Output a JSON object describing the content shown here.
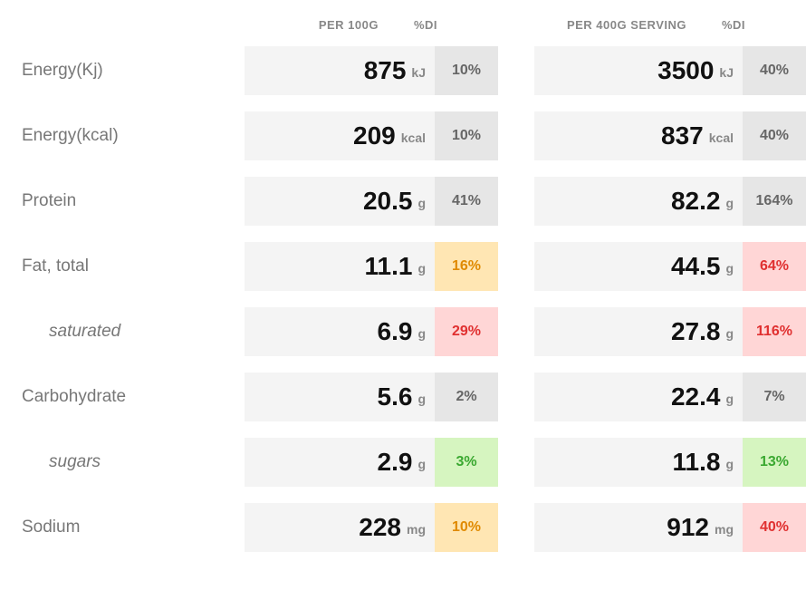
{
  "headers": {
    "per100": "PER 100G",
    "di1": "%DI",
    "perServing": "PER 400G SERVING",
    "di2": "%DI"
  },
  "colors": {
    "neutral_bg": "#e6e6e6",
    "neutral_fg": "#666666",
    "amber_bg": "#ffe6b3",
    "amber_fg": "#e08a00",
    "red_bg": "#ffd6d6",
    "red_fg": "#e03030",
    "green_bg": "#d6f5c0",
    "green_fg": "#3aa830",
    "pill_bg": "#f4f4f4"
  },
  "rows": [
    {
      "label": "Energy(Kj)",
      "indent": false,
      "v100": "875",
      "u100": "kJ",
      "di100": "10%",
      "c100": "neutral",
      "vS": "3500",
      "uS": "kJ",
      "diS": "40%",
      "cS": "neutral"
    },
    {
      "label": "Energy(kcal)",
      "indent": false,
      "v100": "209",
      "u100": "kcal",
      "di100": "10%",
      "c100": "neutral",
      "vS": "837",
      "uS": "kcal",
      "diS": "40%",
      "cS": "neutral"
    },
    {
      "label": "Protein",
      "indent": false,
      "v100": "20.5",
      "u100": "g",
      "di100": "41%",
      "c100": "neutral",
      "vS": "82.2",
      "uS": "g",
      "diS": "164%",
      "cS": "neutral"
    },
    {
      "label": "Fat, total",
      "indent": false,
      "v100": "11.1",
      "u100": "g",
      "di100": "16%",
      "c100": "amber",
      "vS": "44.5",
      "uS": "g",
      "diS": "64%",
      "cS": "red"
    },
    {
      "label": "saturated",
      "indent": true,
      "v100": "6.9",
      "u100": "g",
      "di100": "29%",
      "c100": "red",
      "vS": "27.8",
      "uS": "g",
      "diS": "116%",
      "cS": "red"
    },
    {
      "label": "Carbohydrate",
      "indent": false,
      "v100": "5.6",
      "u100": "g",
      "di100": "2%",
      "c100": "neutral",
      "vS": "22.4",
      "uS": "g",
      "diS": "7%",
      "cS": "neutral"
    },
    {
      "label": "sugars",
      "indent": true,
      "v100": "2.9",
      "u100": "g",
      "di100": "3%",
      "c100": "green",
      "vS": "11.8",
      "uS": "g",
      "diS": "13%",
      "cS": "green"
    },
    {
      "label": "Sodium",
      "indent": false,
      "v100": "228",
      "u100": "mg",
      "di100": "10%",
      "c100": "amber",
      "vS": "912",
      "uS": "mg",
      "diS": "40%",
      "cS": "red"
    }
  ]
}
